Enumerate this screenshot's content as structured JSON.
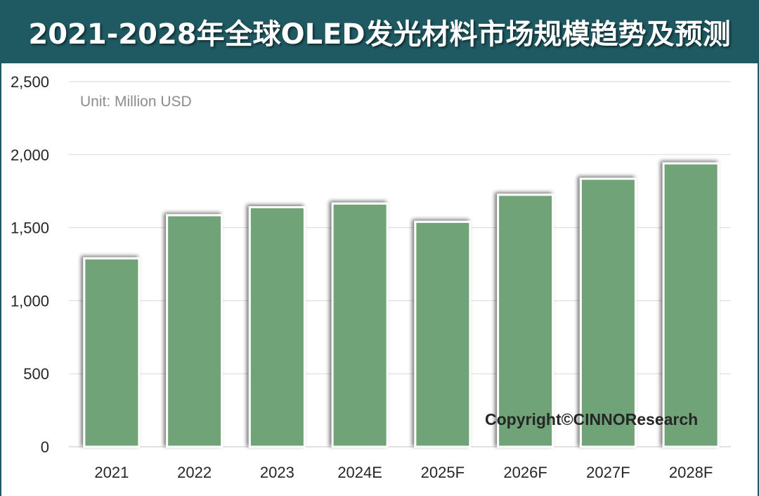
{
  "header": {
    "title": "2021-2028年全球OLED发光材料市场规模趋势及预测"
  },
  "unit_label": "Unit: Million USD",
  "copyright": "Copyright©CINNOResearch",
  "colors": {
    "header_bg": "#1f5a63",
    "bar_fill": "#71a378",
    "grid": "#d9d9d9"
  },
  "chart_data": {
    "type": "bar",
    "categories": [
      "2021",
      "2022",
      "2023",
      "2024E",
      "2025F",
      "2026F",
      "2027F",
      "2028F"
    ],
    "values": [
      1290,
      1585,
      1640,
      1665,
      1540,
      1725,
      1835,
      1940
    ],
    "ylim": [
      0,
      2500
    ],
    "yticks": [
      0,
      500,
      1000,
      1500,
      2000,
      2500
    ],
    "ytick_labels": [
      "0",
      "500",
      "1,000",
      "1,500",
      "2,000",
      "2,500"
    ],
    "grid": true,
    "title": "",
    "xlabel": "",
    "ylabel": ""
  }
}
